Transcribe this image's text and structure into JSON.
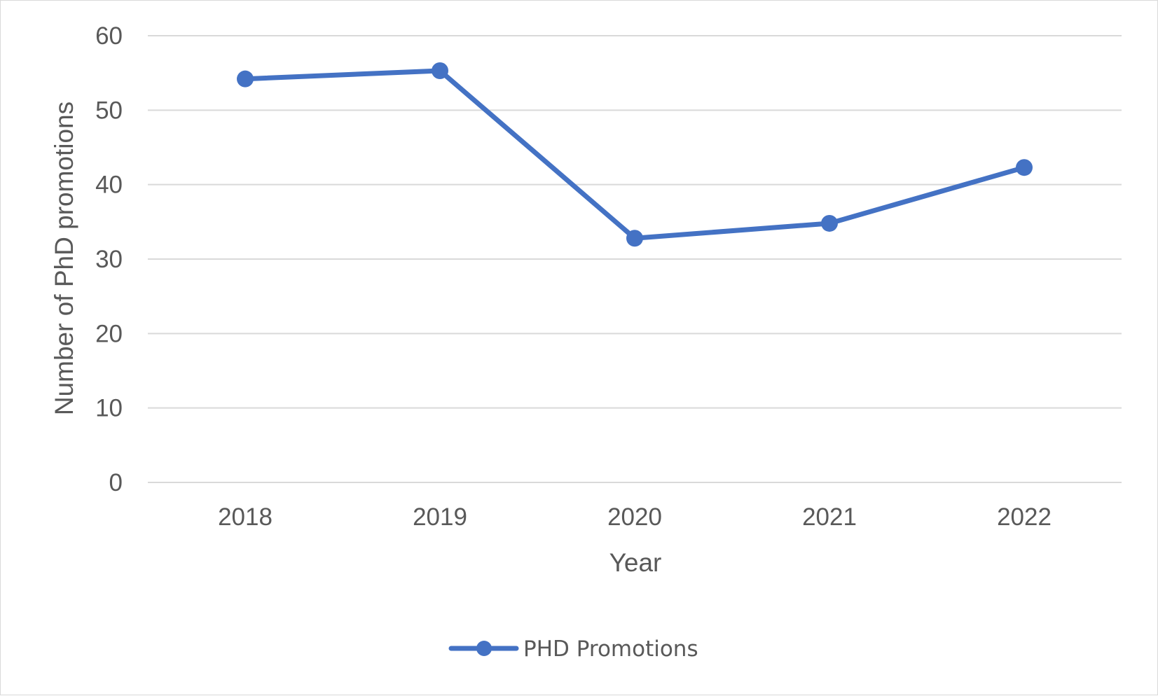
{
  "chart_data": {
    "type": "line",
    "title": "",
    "xlabel": "Year",
    "ylabel": "Number of PhD promotions",
    "categories": [
      "2018",
      "2019",
      "2020",
      "2021",
      "2022"
    ],
    "series": [
      {
        "name": "PHD Promotions",
        "values": [
          54.2,
          55.3,
          32.8,
          34.8,
          42.3
        ],
        "color": "#4472c4",
        "marker": "circle"
      }
    ],
    "ylim": [
      0,
      60
    ],
    "yticks": [
      0,
      10,
      20,
      30,
      40,
      50,
      60
    ],
    "grid": true,
    "legend_position": "bottom"
  }
}
